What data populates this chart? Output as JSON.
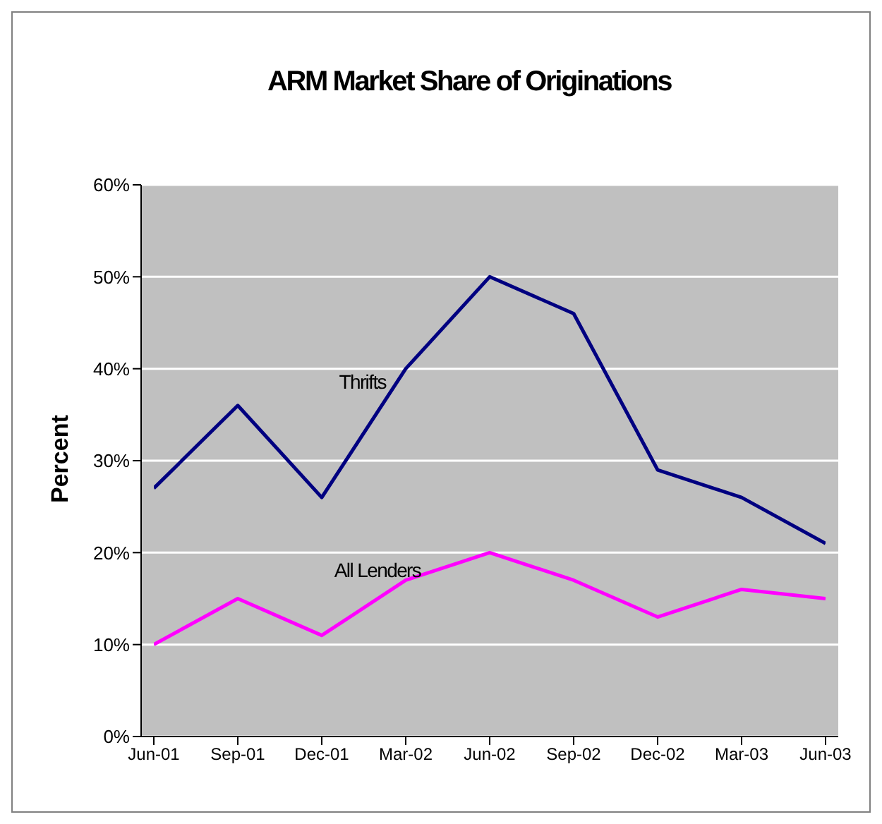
{
  "chart_data": {
    "type": "line",
    "title": "ARM Market Share of Originations",
    "ylabel": "Percent",
    "categories": [
      "Jun-01",
      "Sep-01",
      "Dec-01",
      "Mar-02",
      "Jun-02",
      "Sep-02",
      "Dec-02",
      "Mar-03",
      "Jun-03"
    ],
    "series": [
      {
        "name": "Thrifts",
        "color": "#000080",
        "values": [
          27,
          36,
          26,
          40,
          50,
          46,
          29,
          26,
          21
        ]
      },
      {
        "name": "All Lenders",
        "color": "#ff00ff",
        "values": [
          10,
          15,
          11,
          17,
          20,
          17,
          13,
          16,
          15
        ]
      }
    ],
    "ylim": [
      0,
      60
    ],
    "yticks": [
      {
        "value": 0,
        "label": "0%"
      },
      {
        "value": 10,
        "label": "10%"
      },
      {
        "value": 20,
        "label": "20%"
      },
      {
        "value": 30,
        "label": "30%"
      },
      {
        "value": 40,
        "label": "40%"
      },
      {
        "value": 50,
        "label": "50%"
      },
      {
        "value": 60,
        "label": "60%"
      }
    ],
    "grid": "y",
    "legend": false,
    "marker": "none",
    "line_style": "solid"
  }
}
